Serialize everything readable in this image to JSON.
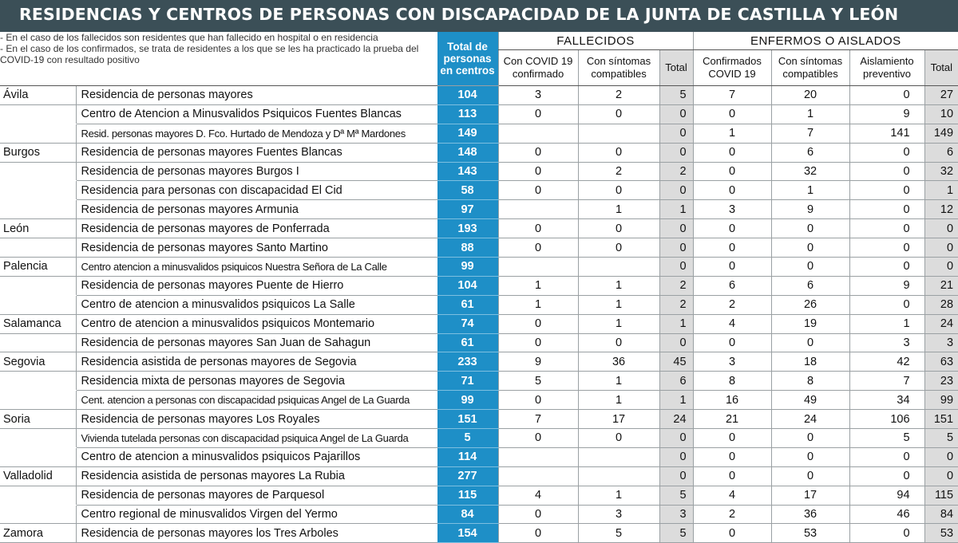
{
  "title": "RESIDENCIAS Y CENTROS DE PERSONAS CON DISCAPACIDAD DE LA JUNTA DE CASTILLA Y LEÓN",
  "notes": [
    "- En el caso de los fallecidos son residentes que han fallecido en hospital o en residencia",
    "- En el caso de los confirmados, se trata de residentes a los que se les ha practicado la prueba del COVID-19 con resultado positivo"
  ],
  "headers": {
    "total_personas": "Total de personas en centros",
    "fallecidos": "FALLECIDOS",
    "enfermos": "ENFERMOS O AISLADOS",
    "f_covid": "Con COVID 19 confirmado",
    "f_sintomas": "Con síntomas compatibles",
    "f_total": "Total",
    "e_confirmados": "Confirmados COVID 19",
    "e_sintomas": "Con síntomas compatibles",
    "e_aislamiento": "Aislamiento preventivo",
    "e_total": "Total"
  },
  "colors": {
    "title_bar": "#3b4f57",
    "accent": "#1e8fc7",
    "shade": "#dcdcdc"
  },
  "rows": [
    {
      "prov": "Ávila",
      "centre": "Residencia de personas mayores",
      "total": "104",
      "fc": "3",
      "fs": "2",
      "ft": "5",
      "ec": "7",
      "es": "20",
      "ea": "0",
      "et": "27"
    },
    {
      "prov": "",
      "centre": "Centro de Atencion a Minusvalidos Psiquicos  Fuentes Blancas",
      "total": "113",
      "fc": "0",
      "fs": "0",
      "ft": "0",
      "ec": "0",
      "es": "1",
      "ea": "9",
      "et": "10"
    },
    {
      "prov": "",
      "centre": "Resid. personas mayores  D. Fco. Hurtado de Mendoza y Dª Mª Mardones",
      "total": "149",
      "fc": "",
      "fs": "",
      "ft": "0",
      "ec": "1",
      "es": "7",
      "ea": "141",
      "et": "149"
    },
    {
      "prov": "Burgos",
      "centre": "Residencia de personas mayores  Fuentes Blancas",
      "total": "148",
      "fc": "0",
      "fs": "0",
      "ft": "0",
      "ec": "0",
      "es": "6",
      "ea": "0",
      "et": "6"
    },
    {
      "prov": "",
      "centre": "Residencia de personas mayores Burgos I",
      "total": "143",
      "fc": "0",
      "fs": "2",
      "ft": "2",
      "ec": "0",
      "es": "32",
      "ea": "0",
      "et": "32"
    },
    {
      "prov": "",
      "centre": "Residencia para personas con discapacidad El Cid",
      "total": "58",
      "fc": "0",
      "fs": "0",
      "ft": "0",
      "ec": "0",
      "es": "1",
      "ea": "0",
      "et": "1"
    },
    {
      "prov": "",
      "centre": "Residencia de personas mayores Armunia",
      "total": "97",
      "fc": "",
      "fs": "1",
      "ft": "1",
      "ec": "3",
      "es": "9",
      "ea": "0",
      "et": "12"
    },
    {
      "prov": "León",
      "centre": "Residencia de personas mayores de Ponferrada",
      "total": "193",
      "fc": "0",
      "fs": "0",
      "ft": "0",
      "ec": "0",
      "es": "0",
      "ea": "0",
      "et": "0"
    },
    {
      "prov": "",
      "centre": "Residencia de personas mayores Santo Martino",
      "total": "88",
      "fc": "0",
      "fs": "0",
      "ft": "0",
      "ec": "0",
      "es": "0",
      "ea": "0",
      "et": "0"
    },
    {
      "prov": "Palencia",
      "centre": "Centro atencion a minusvalidos psiquicos Nuestra Señora de La Calle",
      "total": "99",
      "fc": "",
      "fs": "",
      "ft": "0",
      "ec": "0",
      "es": "0",
      "ea": "0",
      "et": "0"
    },
    {
      "prov": "",
      "centre": "Residencia de personas mayores Puente de Hierro",
      "total": "104",
      "fc": "1",
      "fs": "1",
      "ft": "2",
      "ec": "6",
      "es": "6",
      "ea": "9",
      "et": "21"
    },
    {
      "prov": "",
      "centre": "Centro de atencion a minusvalidos psiquicos  La Salle",
      "total": "61",
      "fc": "1",
      "fs": "1",
      "ft": "2",
      "ec": "2",
      "es": "26",
      "ea": "0",
      "et": "28"
    },
    {
      "prov": "Salamanca",
      "centre": "Centro de atencion a minusvalidos psiquicos Montemario",
      "total": "74",
      "fc": "0",
      "fs": "1",
      "ft": "1",
      "ec": "4",
      "es": "19",
      "ea": "1",
      "et": "24"
    },
    {
      "prov": "",
      "centre": "Residencia de personas mayores San Juan de Sahagun",
      "total": "61",
      "fc": "0",
      "fs": "0",
      "ft": "0",
      "ec": "0",
      "es": "0",
      "ea": "3",
      "et": "3"
    },
    {
      "prov": "Segovia",
      "centre": "Residencia asistida de personas mayores de Segovia",
      "total": "233",
      "fc": "9",
      "fs": "36",
      "ft": "45",
      "ec": "3",
      "es": "18",
      "ea": "42",
      "et": "63"
    },
    {
      "prov": "",
      "centre": "Residencia mixta de personas mayores de Segovia",
      "total": "71",
      "fc": "5",
      "fs": "1",
      "ft": "6",
      "ec": "8",
      "es": "8",
      "ea": "7",
      "et": "23"
    },
    {
      "prov": "",
      "centre": "Cent. atencion a personas con discapacidad psiquicas  Angel de La Guarda",
      "total": "99",
      "fc": "0",
      "fs": "1",
      "ft": "1",
      "ec": "16",
      "es": "49",
      "ea": "34",
      "et": "99"
    },
    {
      "prov": "Soria",
      "centre": "Residencia de personas mayores  Los Royales",
      "total": "151",
      "fc": "7",
      "fs": "17",
      "ft": "24",
      "ec": "21",
      "es": "24",
      "ea": "106",
      "et": "151"
    },
    {
      "prov": "",
      "centre": "Vivienda tutelada personas con discapacidad psiquica  Angel de La Guarda",
      "total": "5",
      "fc": "0",
      "fs": "0",
      "ft": "0",
      "ec": "0",
      "es": "0",
      "ea": "5",
      "et": "5"
    },
    {
      "prov": "",
      "centre": "Centro de atencion a minusvalidos psiquicos Pajarillos",
      "total": "114",
      "fc": "",
      "fs": "",
      "ft": "0",
      "ec": "0",
      "es": "0",
      "ea": "0",
      "et": "0"
    },
    {
      "prov": "Valladolid",
      "centre": "Residencia asistida de personas mayores La Rubia",
      "total": "277",
      "fc": "",
      "fs": "",
      "ft": "0",
      "ec": "0",
      "es": "0",
      "ea": "0",
      "et": "0"
    },
    {
      "prov": "",
      "centre": "Residencia de personas mayores de Parquesol",
      "total": "115",
      "fc": "4",
      "fs": "1",
      "ft": "5",
      "ec": "4",
      "es": "17",
      "ea": "94",
      "et": "115"
    },
    {
      "prov": "",
      "centre": "Centro regional de minusvalidos Virgen del Yermo",
      "total": "84",
      "fc": "0",
      "fs": "3",
      "ft": "3",
      "ec": "2",
      "es": "36",
      "ea": "46",
      "et": "84"
    },
    {
      "prov": "Zamora",
      "centre": "Residencia de personas mayores los Tres Arboles",
      "total": "154",
      "fc": "0",
      "fs": "5",
      "ft": "5",
      "ec": "0",
      "es": "53",
      "ea": "0",
      "et": "53"
    }
  ]
}
